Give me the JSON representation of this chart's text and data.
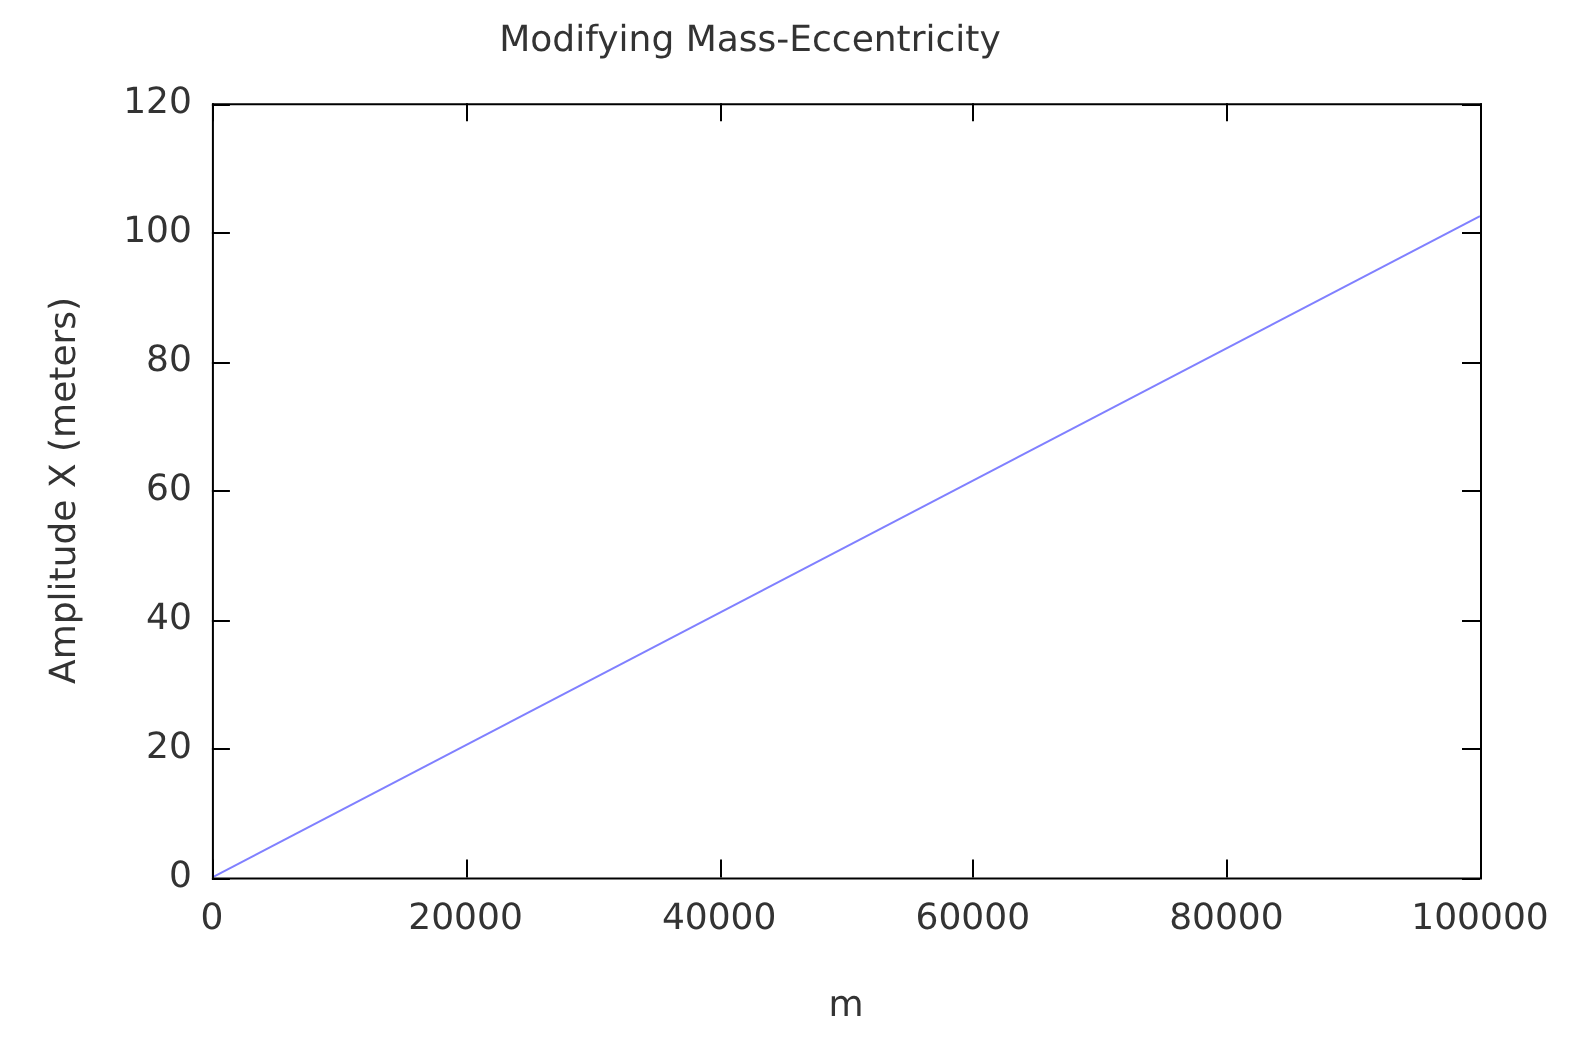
{
  "chart_data": {
    "type": "line",
    "title": "Modifying Mass-Eccentricity",
    "xlabel": "m",
    "ylabel": "Amplitude X (meters)",
    "x": [
      0,
      100000
    ],
    "series": [
      {
        "color": "#8080ff",
        "values": [
          0,
          102.5
        ]
      }
    ],
    "xlim": [
      0,
      100000
    ],
    "xticks": [
      0,
      20000,
      40000,
      60000,
      80000,
      100000
    ],
    "ylim": [
      0,
      120
    ],
    "yticks": [
      0,
      20,
      40,
      60,
      80,
      100,
      120
    ],
    "grid": false,
    "legend": false,
    "marker": "none",
    "line_style": "solid"
  }
}
